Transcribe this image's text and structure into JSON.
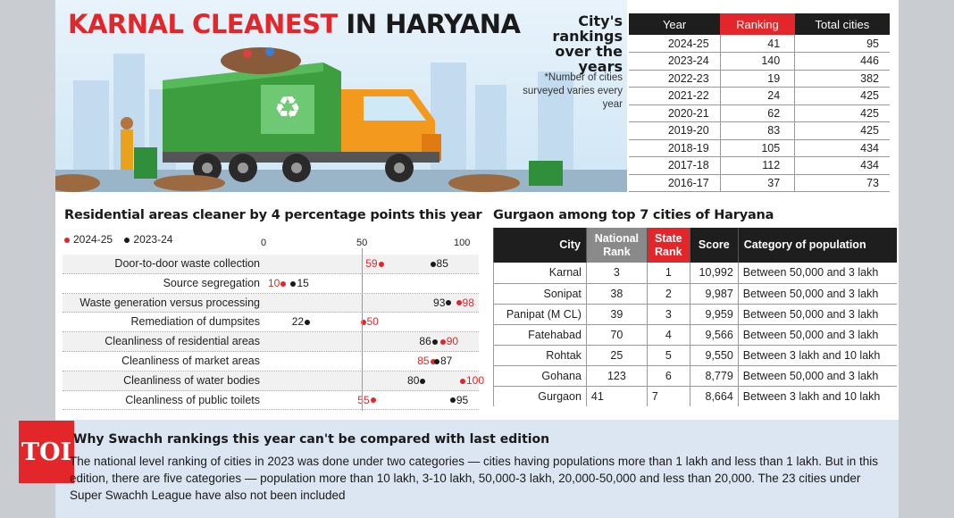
{
  "header": {
    "title_red": "KARNAL CLEANEST",
    "title_black": " IN HARYANA"
  },
  "rankings": {
    "label": "City's rankings over the years",
    "note": "*Number of cities surveyed varies every year",
    "columns": [
      "Year",
      "Ranking",
      "Total cities"
    ],
    "rows": [
      [
        "2024-25",
        "41",
        "95"
      ],
      [
        "2023-24",
        "140",
        "446"
      ],
      [
        "2022-23",
        "19",
        "382"
      ],
      [
        "2021-22",
        "24",
        "425"
      ],
      [
        "2020-21",
        "62",
        "425"
      ],
      [
        "2019-20",
        "83",
        "425"
      ],
      [
        "2018-19",
        "105",
        "434"
      ],
      [
        "2017-18",
        "112",
        "434"
      ],
      [
        "2016-17",
        "37",
        "73"
      ]
    ]
  },
  "residential": {
    "title": "Residential areas cleaner by 4 percentage points this year",
    "legend": [
      "2024-25",
      "2023-24"
    ],
    "ticks": [
      "0",
      "50",
      "100"
    ]
  },
  "chart_data": {
    "type": "scatter",
    "title": "Residential areas cleaner by 4 percentage points this year",
    "xlim": [
      0,
      100
    ],
    "categories": [
      "Door-to-door waste collection",
      "Source segregation",
      "Waste generation versus processing",
      "Remediation of dumpsites",
      "Cleanliness of residential areas",
      "Cleanliness of market areas",
      "Cleanliness of water bodies",
      "Cleanliness of public toilets"
    ],
    "series": [
      {
        "name": "2024-25",
        "color": "#e3262a",
        "values": [
          59,
          10,
          98,
          50,
          90,
          85,
          100,
          55
        ]
      },
      {
        "name": "2023-24",
        "color": "#1a1a1a",
        "values": [
          85,
          15,
          93,
          22,
          86,
          87,
          80,
          95
        ]
      }
    ]
  },
  "gurgaon": {
    "title": "Gurgaon among top 7 cities of Haryana",
    "columns": [
      "City",
      "National Rank",
      "State Rank",
      "Score",
      "Category of population"
    ],
    "rows": [
      [
        "Karnal",
        "3",
        "1",
        "10,992",
        "Between 50,000 and 3 lakh"
      ],
      [
        "Sonipat",
        "38",
        "2",
        "9,987",
        "Between 50,000 and 3 lakh"
      ],
      [
        "Panipat (M CL)",
        "39",
        "3",
        "9,959",
        "Between 50,000 and 3 lakh"
      ],
      [
        "Fatehabad",
        "70",
        "4",
        "9,566",
        "Between 50,000 and 3 lakh"
      ],
      [
        "Rohtak",
        "25",
        "5",
        "9,550",
        "Between 3 lakh and 10 lakh"
      ],
      [
        "Gohana",
        "123",
        "6",
        "8,779",
        "Between 50,000 and 3 lakh"
      ],
      [
        "Gurgaon",
        "41",
        "7",
        "8,664",
        "Between 3 lakh and 10 lakh"
      ]
    ]
  },
  "note": {
    "logo": "TOI",
    "title": "Why Swachh rankings this year can't be compared with last edition",
    "body": "The national level ranking of cities in 2023 was done under two categories — cities having populations more than 1 lakh and less than 1 lakh. But in this edition, there are five categories — population more than 10 lakh, 3-10 lakh, 50,000-3 lakh, 20,000-50,000 and less than 20,000. The 23 cities under Super Swachh League have also not been included"
  }
}
